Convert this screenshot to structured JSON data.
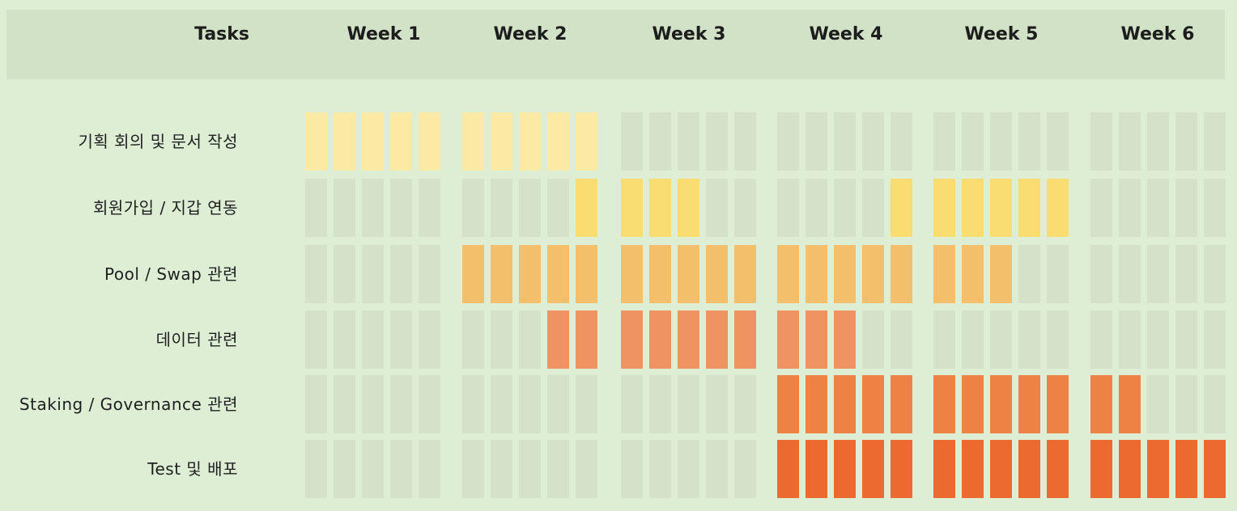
{
  "header": {
    "tasks_label": "Tasks",
    "weeks": [
      "Week 1",
      "Week 2",
      "Week 3",
      "Week 4",
      "Week 5",
      "Week 6"
    ]
  },
  "days_per_week": 5,
  "empty_color": "#d3e2c9",
  "tasks": [
    {
      "label": "기획 회의 및 문서 작성",
      "color": "#fbe9a4",
      "start_day": 1,
      "end_day": 10
    },
    {
      "label": "회원가입 / 지갑 연동",
      "color": "#f9dd70",
      "start_day": 10,
      "end_day": 25,
      "gaps": [
        14,
        15,
        16,
        17,
        18,
        19
      ]
    },
    {
      "label": "Pool / Swap 관련",
      "color": "#f3bf6a",
      "start_day": 6,
      "end_day": 23
    },
    {
      "label": "데이터 관련",
      "color": "#ef9460",
      "start_day": 9,
      "end_day": 18
    },
    {
      "label": "Staking / Governance 관련",
      "color": "#ee8244",
      "start_day": 16,
      "end_day": 27
    },
    {
      "label": "Test 및 배포",
      "color": "#ec6a2f",
      "start_day": 16,
      "end_day": 30
    }
  ]
}
